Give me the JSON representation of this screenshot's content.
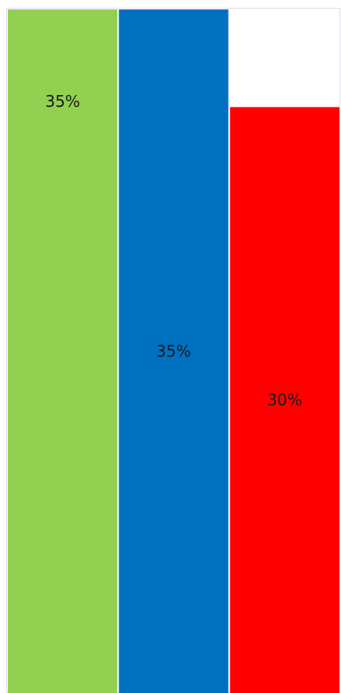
{
  "chart_data": {
    "type": "bar",
    "series": [
      {
        "value": 35,
        "label": "35%",
        "color": "#92d050"
      },
      {
        "value": 35,
        "label": "35%",
        "color": "#0070c0"
      },
      {
        "value": 30,
        "label": "30%",
        "color": "#ff0000"
      }
    ],
    "ylim": [
      0,
      35
    ],
    "grid": false,
    "legend": "none"
  }
}
